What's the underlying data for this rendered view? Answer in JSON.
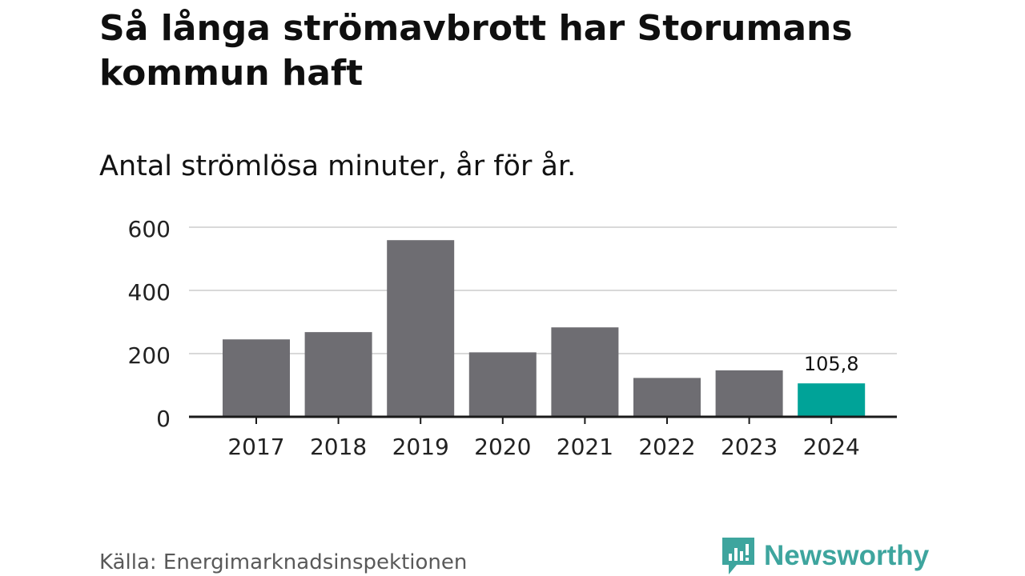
{
  "title": "Så långa strömavbrott har Storumans kommun haft",
  "subtitle": "Antal strömlösa minuter, år för år.",
  "source": "Källa: Energimarknadsinspektionen",
  "brand": {
    "name": "Newsworthy",
    "icon": "newsworthy-logo-icon",
    "color": "#3ea59e"
  },
  "colors": {
    "bar": "#6e6d72",
    "highlight": "#00a398",
    "grid": "#d9d9d9",
    "axis": "#1a1a1a"
  },
  "chart_data": {
    "type": "bar",
    "title": "Så långa strömavbrott har Storumans kommun haft",
    "subtitle": "Antal strömlösa minuter, år för år.",
    "xlabel": "",
    "ylabel": "",
    "categories": [
      "2017",
      "2018",
      "2019",
      "2020",
      "2021",
      "2022",
      "2023",
      "2024"
    ],
    "values": [
      245,
      268,
      559,
      204,
      283,
      123,
      147,
      105.8
    ],
    "ylim": [
      0,
      600
    ],
    "yticks": [
      "0",
      "200",
      "400",
      "600"
    ],
    "ytick_values": [
      0,
      200,
      400,
      600
    ],
    "grid": true,
    "highlight_index": 7,
    "annotations": [
      {
        "category": "2024",
        "label": "105,8"
      }
    ]
  }
}
